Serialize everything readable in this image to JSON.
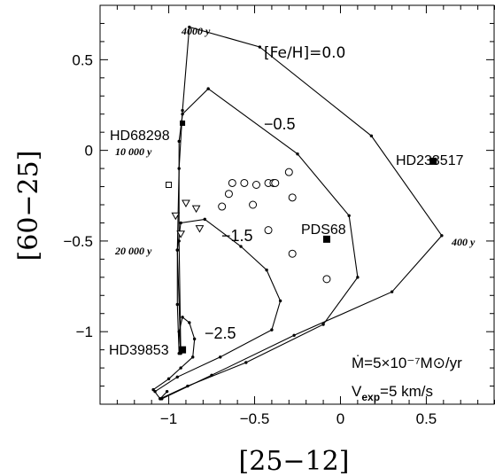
{
  "chart_data": {
    "type": "scatter",
    "title": "",
    "xlabel": "[25−12]",
    "ylabel": "[60−25]",
    "xlim": [
      -1.4,
      0.9
    ],
    "ylim": [
      -1.4,
      0.8
    ],
    "x_ticks": [
      -1,
      -0.5,
      0,
      0.5
    ],
    "x_tick_labels": [
      "−1",
      "−0.5",
      "0",
      "0.5"
    ],
    "y_ticks": [
      -1,
      -0.5,
      0,
      0.5
    ],
    "y_tick_labels": [
      "−1",
      "−0.5",
      "0",
      "0.5"
    ],
    "grid": false,
    "tracks": [
      {
        "label": "[Fe/H]=0.0",
        "points": [
          [
            -0.92,
            -1.11
          ],
          [
            -0.94,
            -1.12
          ],
          [
            -0.95,
            -0.85
          ],
          [
            -0.95,
            -0.55
          ],
          [
            -0.94,
            -0.1
          ],
          [
            -0.92,
            0.22
          ],
          [
            -0.88,
            0.68
          ],
          [
            -0.47,
            0.57
          ],
          [
            0.18,
            0.08
          ],
          [
            0.59,
            -0.47
          ],
          [
            0.3,
            -0.78
          ],
          [
            -0.27,
            -1.02
          ],
          [
            -0.75,
            -1.24
          ],
          [
            -1.04,
            -1.37
          ]
        ]
      },
      {
        "label": "−0.5",
        "points": [
          [
            -0.93,
            -1.1
          ],
          [
            -0.94,
            -0.5
          ],
          [
            -0.94,
            0.05
          ],
          [
            -0.92,
            0.2
          ],
          [
            -0.77,
            0.34
          ],
          [
            -0.25,
            -0.02
          ],
          [
            0.05,
            -0.36
          ],
          [
            0.1,
            -0.7
          ],
          [
            -0.1,
            -0.96
          ],
          [
            -0.55,
            -1.17
          ],
          [
            -0.89,
            -1.3
          ],
          [
            -1.05,
            -1.37
          ]
        ]
      },
      {
        "label": "−1.5",
        "points": [
          [
            -0.93,
            -1.12
          ],
          [
            -0.95,
            -0.55
          ],
          [
            -0.93,
            -0.4
          ],
          [
            -0.79,
            -0.38
          ],
          [
            -0.58,
            -0.53
          ],
          [
            -0.43,
            -0.66
          ],
          [
            -0.35,
            -0.83
          ],
          [
            -0.4,
            -0.99
          ],
          [
            -0.7,
            -1.14
          ],
          [
            -0.95,
            -1.25
          ],
          [
            -1.08,
            -1.33
          ]
        ]
      },
      {
        "label": "−2.5",
        "points": [
          [
            -0.93,
            -1.11
          ],
          [
            -0.94,
            -1.0
          ],
          [
            -0.92,
            -0.92
          ],
          [
            -0.88,
            -0.95
          ],
          [
            -0.85,
            -1.04
          ],
          [
            -0.86,
            -1.14
          ],
          [
            -0.93,
            -1.2
          ],
          [
            -1.0,
            -1.26
          ],
          [
            -1.09,
            -1.32
          ],
          [
            -1.05,
            -1.37
          ],
          [
            -1.01,
            -1.33
          ]
        ]
      }
    ],
    "circles": [
      [
        -0.63,
        -0.18
      ],
      [
        -0.56,
        -0.18
      ],
      [
        -0.49,
        -0.19
      ],
      [
        -0.42,
        -0.18
      ],
      [
        -0.39,
        -0.18
      ],
      [
        -0.38,
        -0.18
      ],
      [
        -0.3,
        -0.12
      ],
      [
        -0.65,
        -0.24
      ],
      [
        -0.51,
        -0.3
      ],
      [
        -0.28,
        -0.26
      ],
      [
        -0.69,
        -0.31
      ],
      [
        -0.42,
        -0.44
      ],
      [
        -0.28,
        -0.57
      ],
      [
        -0.08,
        -0.71
      ]
    ],
    "triangles": [
      [
        -0.9,
        -0.29
      ],
      [
        -0.84,
        -0.32
      ],
      [
        -0.82,
        -0.43
      ],
      [
        -0.93,
        -0.46
      ],
      [
        -0.96,
        -0.36
      ]
    ],
    "small_square": [
      -1.0,
      -0.19
    ],
    "labeled_objects": [
      {
        "name": "HD68298",
        "x": -0.92,
        "y": 0.15
      },
      {
        "name": "HD233517",
        "x": 0.54,
        "y": -0.06
      },
      {
        "name": "PDS68",
        "x": -0.08,
        "y": -0.49
      },
      {
        "name": "HD39853",
        "x": -0.92,
        "y": -1.1
      }
    ],
    "age_labels": [
      "4000 y",
      "10 000 y",
      "20 000 y",
      "400 y"
    ],
    "annotations": [
      "Ṁ=5×10⁻⁷M⊙/yr",
      "V",
      "exp",
      "=5 km/s"
    ]
  }
}
